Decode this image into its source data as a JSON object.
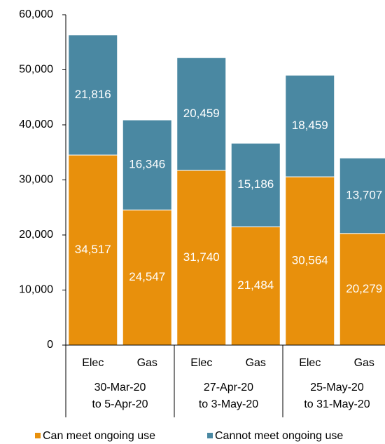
{
  "chart_data": {
    "type": "stacked-bar",
    "categories": [
      "Elec",
      "Gas",
      "Elec",
      "Gas",
      "Elec",
      "Gas"
    ],
    "groups": [
      [
        "30-Mar-20",
        "to 5-Apr-20"
      ],
      [
        "27-Apr-20",
        "to 3-May-20"
      ],
      [
        "25-May-20",
        "to 31-May-20"
      ]
    ],
    "series": [
      {
        "name": "Can meet ongoing use",
        "color": "#e8900c",
        "values": [
          34517,
          24547,
          31740,
          21484,
          30564,
          20279
        ],
        "value_labels": [
          "34,517",
          "24,547",
          "31,740",
          "21,484",
          "30,564",
          "20,279"
        ]
      },
      {
        "name": "Cannot meet ongoing use",
        "color": "#4a88a2",
        "values": [
          21816,
          16346,
          20459,
          15186,
          18459,
          13707
        ],
        "value_labels": [
          "21,816",
          "16,346",
          "20,459",
          "15,186",
          "18,459",
          "13,707"
        ]
      }
    ],
    "ylim": [
      0,
      60000
    ],
    "yticks": [
      0,
      {
        "value": 10000,
        "label": "10,000"
      },
      {
        "value": 20000,
        "label": "20,000"
      },
      {
        "value": 30000,
        "label": "30,000"
      },
      {
        "value": 40000,
        "label": "40,000"
      },
      {
        "value": 50000,
        "label": "50,000"
      },
      {
        "value": 60000,
        "label": "60,000"
      }
    ],
    "legend": "bottom"
  }
}
